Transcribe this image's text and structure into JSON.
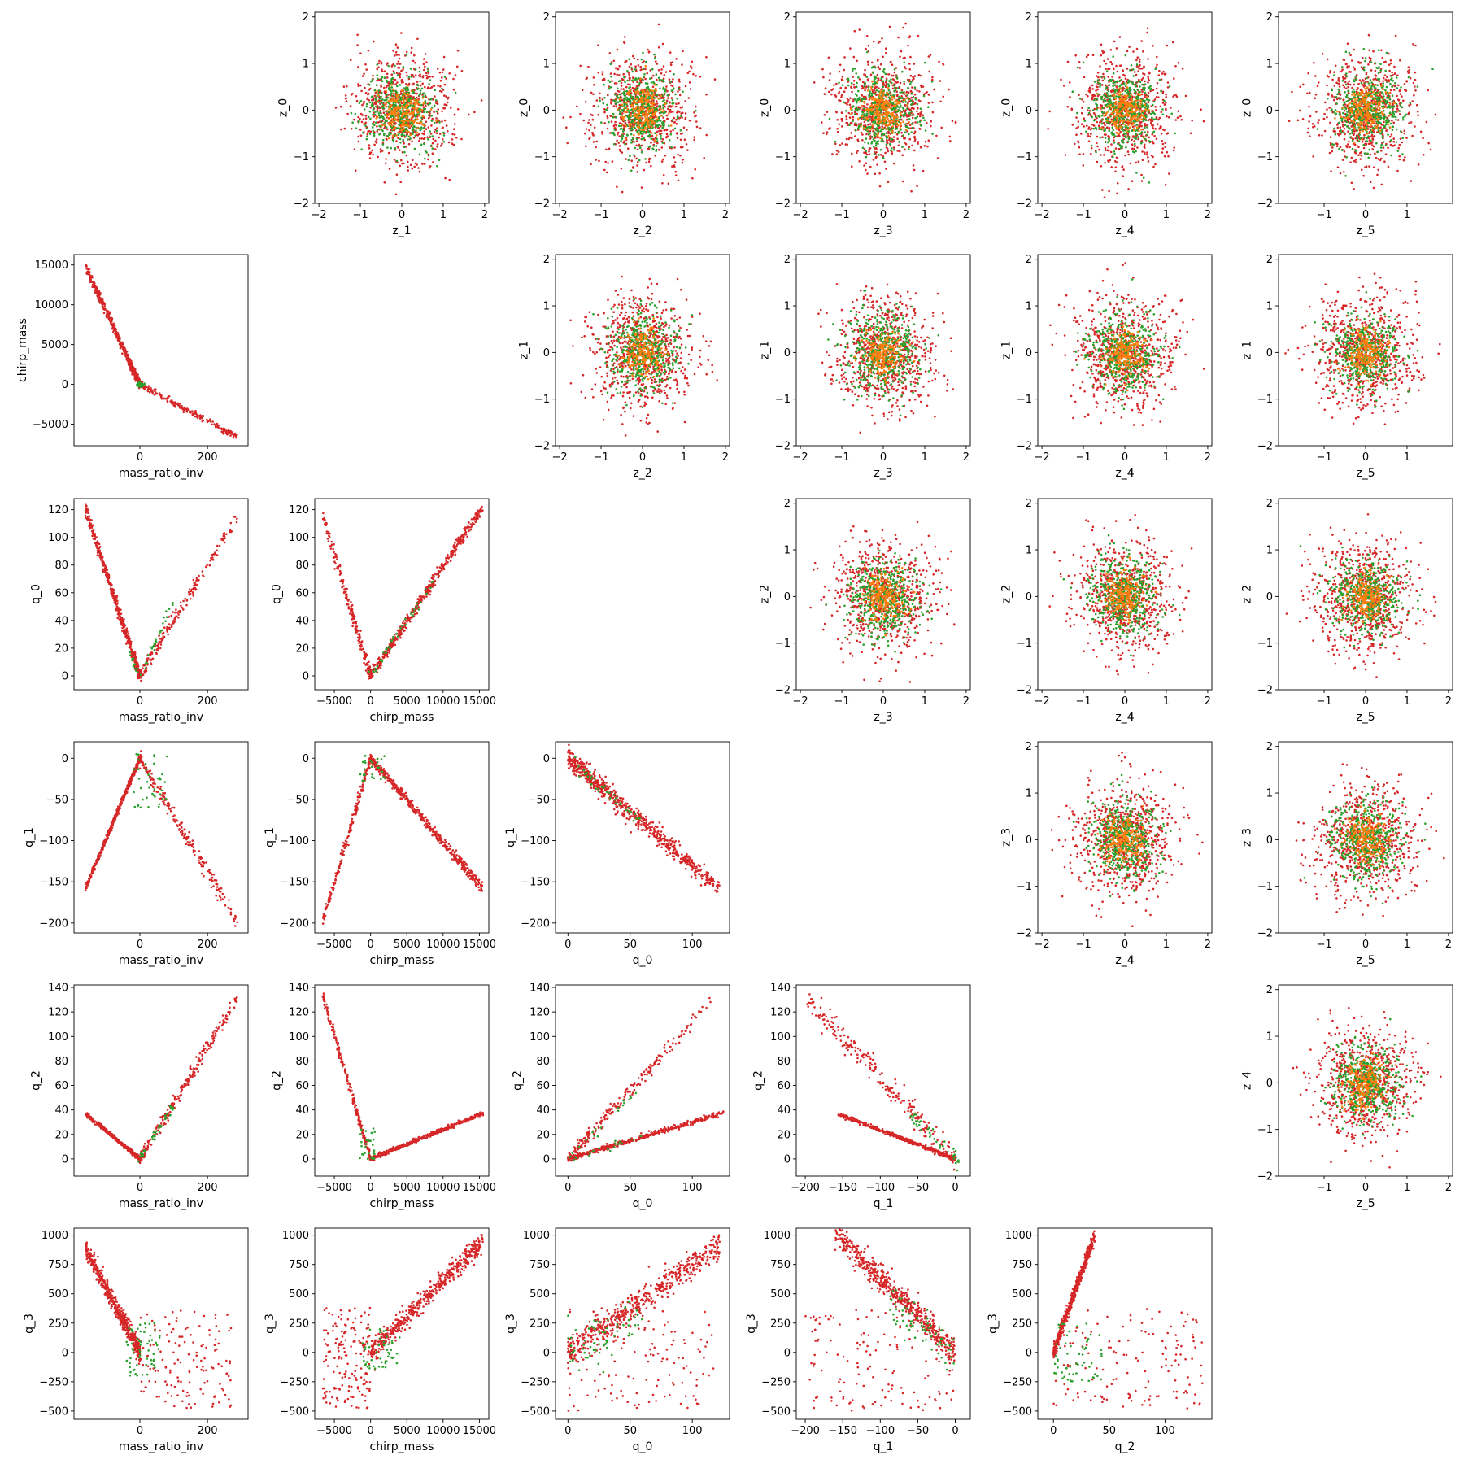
{
  "colors": {
    "red": "#d62728",
    "green": "#2ca02c",
    "orange": "#ff7f0e",
    "axis": "#000000",
    "background": "#ffffff"
  },
  "chart_data": {
    "type": "scatter",
    "layout": "pair-plot grid, 6 rows x 6 columns",
    "marker": "small dots",
    "series_colors": [
      "red",
      "green",
      "orange"
    ],
    "panels": [
      {
        "row": 0,
        "col": 1,
        "x_var": "z_1",
        "y_var": "z_0",
        "xlabel": "z_1",
        "ylabel": "z_0",
        "xlim": [
          -2.1,
          2.1
        ],
        "ylim": [
          -2,
          2.1
        ],
        "xticks": [
          -2,
          -1,
          0,
          1,
          2
        ],
        "yticks": [
          -2,
          -1,
          0,
          1,
          2
        ],
        "pattern": "blob"
      },
      {
        "row": 0,
        "col": 2,
        "x_var": "z_2",
        "y_var": "z_0",
        "xlabel": "z_2",
        "ylabel": "z_0",
        "xlim": [
          -2.1,
          2.1
        ],
        "ylim": [
          -2,
          2.1
        ],
        "xticks": [
          -2,
          -1,
          0,
          1,
          2
        ],
        "yticks": [
          -2,
          -1,
          0,
          1,
          2
        ],
        "pattern": "blob"
      },
      {
        "row": 0,
        "col": 3,
        "x_var": "z_3",
        "y_var": "z_0",
        "xlabel": "z_3",
        "ylabel": "z_0",
        "xlim": [
          -2.1,
          2.1
        ],
        "ylim": [
          -2,
          2.1
        ],
        "xticks": [
          -2,
          -1,
          0,
          1,
          2
        ],
        "yticks": [
          -2,
          -1,
          0,
          1,
          2
        ],
        "pattern": "blob"
      },
      {
        "row": 0,
        "col": 4,
        "x_var": "z_4",
        "y_var": "z_0",
        "xlabel": "z_4",
        "ylabel": "z_0",
        "xlim": [
          -2.1,
          2.1
        ],
        "ylim": [
          -2,
          2.1
        ],
        "xticks": [
          -2,
          -1,
          0,
          1,
          2
        ],
        "yticks": [
          -2,
          -1,
          0,
          1,
          2
        ],
        "pattern": "blob"
      },
      {
        "row": 0,
        "col": 5,
        "x_var": "z_5",
        "y_var": "z_0",
        "xlabel": "z_5",
        "ylabel": "z_0",
        "xlim": [
          -2.1,
          2.1
        ],
        "ylim": [
          -2,
          2.1
        ],
        "xticks": [
          -1,
          0,
          1
        ],
        "yticks": [
          -2,
          -1,
          0,
          1,
          2
        ],
        "pattern": "blob"
      },
      {
        "row": 1,
        "col": 0,
        "x_var": "mass_ratio_inv",
        "y_var": "chirp_mass",
        "xlabel": "mass_ratio_inv",
        "ylabel": "chirp_mass",
        "xlim": [
          -195,
          320
        ],
        "ylim": [
          -7700,
          16300
        ],
        "xticks": [
          0,
          200
        ],
        "yticks": [
          -5000,
          0,
          5000,
          10000,
          15000
        ],
        "pattern": "chirp_vs_mri"
      },
      {
        "row": 1,
        "col": 2,
        "x_var": "z_2",
        "y_var": "z_1",
        "xlabel": "z_2",
        "ylabel": "z_1",
        "xlim": [
          -2.1,
          2.1
        ],
        "ylim": [
          -2,
          2.1
        ],
        "xticks": [
          -2,
          -1,
          0,
          1,
          2
        ],
        "yticks": [
          -2,
          -1,
          0,
          1,
          2
        ],
        "pattern": "blob"
      },
      {
        "row": 1,
        "col": 3,
        "x_var": "z_3",
        "y_var": "z_1",
        "xlabel": "z_3",
        "ylabel": "z_1",
        "xlim": [
          -2.1,
          2.1
        ],
        "ylim": [
          -2,
          2.1
        ],
        "xticks": [
          -2,
          -1,
          0,
          1,
          2
        ],
        "yticks": [
          -2,
          -1,
          0,
          1,
          2
        ],
        "pattern": "blob"
      },
      {
        "row": 1,
        "col": 4,
        "x_var": "z_4",
        "y_var": "z_1",
        "xlabel": "z_4",
        "ylabel": "z_1",
        "xlim": [
          -2.1,
          2.1
        ],
        "ylim": [
          -2,
          2.1
        ],
        "xticks": [
          -2,
          -1,
          0,
          1,
          2
        ],
        "yticks": [
          -2,
          -1,
          0,
          1,
          2
        ],
        "pattern": "blob"
      },
      {
        "row": 1,
        "col": 5,
        "x_var": "z_5",
        "y_var": "z_1",
        "xlabel": "z_5",
        "ylabel": "z_1",
        "xlim": [
          -2.1,
          2.1
        ],
        "ylim": [
          -2,
          2.1
        ],
        "xticks": [
          -1,
          0,
          1
        ],
        "yticks": [
          -2,
          -1,
          0,
          1,
          2
        ],
        "pattern": "blob"
      },
      {
        "row": 2,
        "col": 0,
        "x_var": "mass_ratio_inv",
        "y_var": "q_0",
        "xlabel": "mass_ratio_inv",
        "ylabel": "q_0",
        "xlim": [
          -195,
          320
        ],
        "ylim": [
          -10,
          128
        ],
        "xticks": [
          0,
          200
        ],
        "yticks": [
          0,
          20,
          40,
          60,
          80,
          100,
          120
        ],
        "pattern": "q0_vs_mri"
      },
      {
        "row": 2,
        "col": 1,
        "x_var": "chirp_mass",
        "y_var": "q_0",
        "xlabel": "chirp_mass",
        "ylabel": "q_0",
        "xlim": [
          -7700,
          16300
        ],
        "ylim": [
          -10,
          128
        ],
        "xticks": [
          -5000,
          0,
          5000,
          10000,
          15000
        ],
        "yticks": [
          0,
          20,
          40,
          60,
          80,
          100,
          120
        ],
        "pattern": "q0_vs_chirp"
      },
      {
        "row": 2,
        "col": 3,
        "x_var": "z_3",
        "y_var": "z_2",
        "xlabel": "z_3",
        "ylabel": "z_2",
        "xlim": [
          -2.1,
          2.1
        ],
        "ylim": [
          -2,
          2.1
        ],
        "xticks": [
          -2,
          -1,
          0,
          1,
          2
        ],
        "yticks": [
          -2,
          -1,
          0,
          1,
          2
        ],
        "pattern": "blob"
      },
      {
        "row": 2,
        "col": 4,
        "x_var": "z_4",
        "y_var": "z_2",
        "xlabel": "z_4",
        "ylabel": "z_2",
        "xlim": [
          -2.1,
          2.1
        ],
        "ylim": [
          -2,
          2.1
        ],
        "xticks": [
          -2,
          -1,
          0,
          1,
          2
        ],
        "yticks": [
          -2,
          -1,
          0,
          1,
          2
        ],
        "pattern": "blob"
      },
      {
        "row": 2,
        "col": 5,
        "x_var": "z_5",
        "y_var": "z_2",
        "xlabel": "z_5",
        "ylabel": "z_2",
        "xlim": [
          -2.1,
          2.1
        ],
        "ylim": [
          -2,
          2.1
        ],
        "xticks": [
          -1,
          0,
          1,
          2
        ],
        "yticks": [
          -2,
          -1,
          0,
          1,
          2
        ],
        "pattern": "blob"
      },
      {
        "row": 3,
        "col": 0,
        "x_var": "mass_ratio_inv",
        "y_var": "q_1",
        "xlabel": "mass_ratio_inv",
        "ylabel": "q_1",
        "xlim": [
          -195,
          320
        ],
        "ylim": [
          -212,
          20
        ],
        "xticks": [
          0,
          200
        ],
        "yticks": [
          -200,
          -150,
          -100,
          -50,
          0
        ],
        "pattern": "q1_vs_mri"
      },
      {
        "row": 3,
        "col": 1,
        "x_var": "chirp_mass",
        "y_var": "q_1",
        "xlabel": "chirp_mass",
        "ylabel": "q_1",
        "xlim": [
          -7700,
          16300
        ],
        "ylim": [
          -212,
          20
        ],
        "xticks": [
          -5000,
          0,
          5000,
          10000,
          15000
        ],
        "yticks": [
          -200,
          -150,
          -100,
          -50,
          0
        ],
        "pattern": "q1_vs_chirp"
      },
      {
        "row": 3,
        "col": 2,
        "x_var": "q_0",
        "y_var": "q_1",
        "xlabel": "q_0",
        "ylabel": "q_1",
        "xlim": [
          -10,
          130
        ],
        "ylim": [
          -212,
          20
        ],
        "xticks": [
          0,
          50,
          100
        ],
        "yticks": [
          -200,
          -150,
          -100,
          -50,
          0
        ],
        "pattern": "q1_vs_q0"
      },
      {
        "row": 3,
        "col": 4,
        "x_var": "z_4",
        "y_var": "z_3",
        "xlabel": "z_4",
        "ylabel": "z_3",
        "xlim": [
          -2.1,
          2.1
        ],
        "ylim": [
          -2,
          2.1
        ],
        "xticks": [
          -2,
          -1,
          0,
          1,
          2
        ],
        "yticks": [
          -2,
          -1,
          0,
          1,
          2
        ],
        "pattern": "blob"
      },
      {
        "row": 3,
        "col": 5,
        "x_var": "z_5",
        "y_var": "z_3",
        "xlabel": "z_5",
        "ylabel": "z_3",
        "xlim": [
          -2.1,
          2.1
        ],
        "ylim": [
          -2,
          2.1
        ],
        "xticks": [
          -1,
          0,
          1,
          2
        ],
        "yticks": [
          -2,
          -1,
          0,
          1,
          2
        ],
        "pattern": "blob"
      },
      {
        "row": 4,
        "col": 0,
        "x_var": "mass_ratio_inv",
        "y_var": "q_2",
        "xlabel": "mass_ratio_inv",
        "ylabel": "q_2",
        "xlim": [
          -195,
          320
        ],
        "ylim": [
          -14,
          142
        ],
        "xticks": [
          0,
          200
        ],
        "yticks": [
          0,
          20,
          40,
          60,
          80,
          100,
          120,
          140
        ],
        "pattern": "q2_vs_mri"
      },
      {
        "row": 4,
        "col": 1,
        "x_var": "chirp_mass",
        "y_var": "q_2",
        "xlabel": "chirp_mass",
        "ylabel": "q_2",
        "xlim": [
          -7700,
          16300
        ],
        "ylim": [
          -14,
          142
        ],
        "xticks": [
          -5000,
          0,
          5000,
          10000,
          15000
        ],
        "yticks": [
          0,
          20,
          40,
          60,
          80,
          100,
          120,
          140
        ],
        "pattern": "q2_vs_chirp"
      },
      {
        "row": 4,
        "col": 2,
        "x_var": "q_0",
        "y_var": "q_2",
        "xlabel": "q_0",
        "ylabel": "q_2",
        "xlim": [
          -10,
          130
        ],
        "ylim": [
          -14,
          142
        ],
        "xticks": [
          0,
          50,
          100
        ],
        "yticks": [
          0,
          20,
          40,
          60,
          80,
          100,
          120,
          140
        ],
        "pattern": "q2_vs_q0"
      },
      {
        "row": 4,
        "col": 3,
        "x_var": "q_1",
        "y_var": "q_2",
        "xlabel": "q_1",
        "ylabel": "q_2",
        "xlim": [
          -212,
          20
        ],
        "ylim": [
          -14,
          142
        ],
        "xticks": [
          -200,
          -150,
          -100,
          -50,
          0
        ],
        "yticks": [
          0,
          20,
          40,
          60,
          80,
          100,
          120,
          140
        ],
        "pattern": "q2_vs_q1"
      },
      {
        "row": 4,
        "col": 5,
        "x_var": "z_5",
        "y_var": "z_4",
        "xlabel": "z_5",
        "ylabel": "z_4",
        "xlim": [
          -2.1,
          2.1
        ],
        "ylim": [
          -2,
          2.1
        ],
        "xticks": [
          -1,
          0,
          1,
          2
        ],
        "yticks": [
          -2,
          -1,
          0,
          1,
          2
        ],
        "pattern": "blob"
      },
      {
        "row": 5,
        "col": 0,
        "x_var": "mass_ratio_inv",
        "y_var": "q_3",
        "xlabel": "mass_ratio_inv",
        "ylabel": "q_3",
        "xlim": [
          -195,
          320
        ],
        "ylim": [
          -570,
          1060
        ],
        "xticks": [
          0,
          200
        ],
        "yticks": [
          -500,
          -250,
          0,
          250,
          500,
          750,
          1000
        ],
        "pattern": "q3_vs_mri"
      },
      {
        "row": 5,
        "col": 1,
        "x_var": "chirp_mass",
        "y_var": "q_3",
        "xlabel": "chirp_mass",
        "ylabel": "q_3",
        "xlim": [
          -7700,
          16300
        ],
        "ylim": [
          -570,
          1060
        ],
        "xticks": [
          -5000,
          0,
          5000,
          10000,
          15000
        ],
        "yticks": [
          -500,
          -250,
          0,
          250,
          500,
          750,
          1000
        ],
        "pattern": "q3_vs_chirp"
      },
      {
        "row": 5,
        "col": 2,
        "x_var": "q_0",
        "y_var": "q_3",
        "xlabel": "q_0",
        "ylabel": "q_3",
        "xlim": [
          -10,
          130
        ],
        "ylim": [
          -570,
          1060
        ],
        "xticks": [
          0,
          50,
          100
        ],
        "yticks": [
          -500,
          -250,
          0,
          250,
          500,
          750,
          1000
        ],
        "pattern": "q3_vs_q0"
      },
      {
        "row": 5,
        "col": 3,
        "x_var": "q_1",
        "y_var": "q_3",
        "xlabel": "q_1",
        "ylabel": "q_3",
        "xlim": [
          -212,
          20
        ],
        "ylim": [
          -570,
          1060
        ],
        "xticks": [
          -200,
          -150,
          -100,
          -50,
          0
        ],
        "yticks": [
          -500,
          -250,
          0,
          250,
          500,
          750,
          1000
        ],
        "pattern": "q3_vs_q1"
      },
      {
        "row": 5,
        "col": 4,
        "x_var": "q_2",
        "y_var": "q_3",
        "xlabel": "q_2",
        "ylabel": "q_3",
        "xlim": [
          -14,
          142
        ],
        "ylim": [
          -570,
          1060
        ],
        "xticks": [
          0,
          50,
          100
        ],
        "yticks": [
          -500,
          -250,
          0,
          250,
          500,
          750,
          1000
        ],
        "pattern": "q3_vs_q2"
      }
    ]
  }
}
